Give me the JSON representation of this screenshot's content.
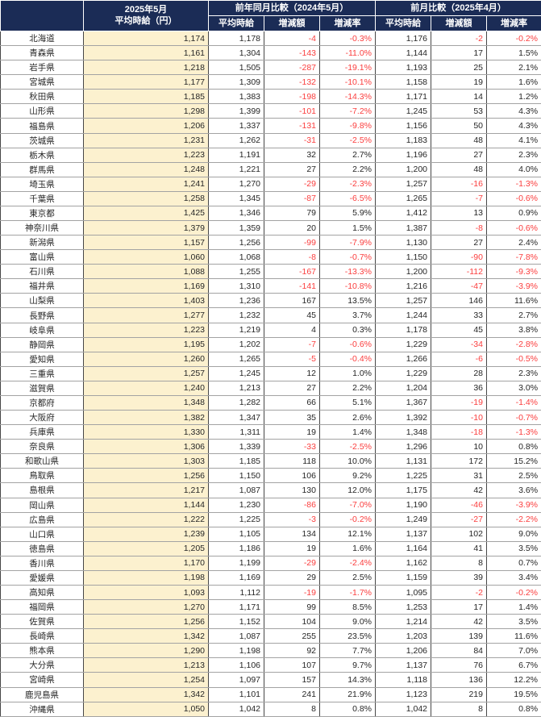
{
  "table": {
    "corner_label": "",
    "current_header_line1": "2025年5月",
    "current_header_line2": "平均時給（円）",
    "group_yoy_header": "前年同月比較（2024年5月）",
    "group_mom_header": "前月比較（2025年4月）",
    "sub_headers": [
      "平均時給",
      "増減額",
      "増減率"
    ],
    "row_fields": [
      "pref",
      "wage",
      "yoy_wage",
      "yoy_diff",
      "yoy_rate",
      "mom_wage",
      "mom_diff",
      "mom_rate"
    ],
    "rows": [
      [
        "北海道",
        "1,174",
        "1,178",
        "-4",
        "-0.3%",
        "1,176",
        "-2",
        "-0.2%"
      ],
      [
        "青森県",
        "1,161",
        "1,304",
        "-143",
        "-11.0%",
        "1,144",
        "17",
        "1.5%"
      ],
      [
        "岩手県",
        "1,218",
        "1,505",
        "-287",
        "-19.1%",
        "1,193",
        "25",
        "2.1%"
      ],
      [
        "宮城県",
        "1,177",
        "1,309",
        "-132",
        "-10.1%",
        "1,158",
        "19",
        "1.6%"
      ],
      [
        "秋田県",
        "1,185",
        "1,383",
        "-198",
        "-14.3%",
        "1,171",
        "14",
        "1.2%"
      ],
      [
        "山形県",
        "1,298",
        "1,399",
        "-101",
        "-7.2%",
        "1,245",
        "53",
        "4.3%"
      ],
      [
        "福島県",
        "1,206",
        "1,337",
        "-131",
        "-9.8%",
        "1,156",
        "50",
        "4.3%"
      ],
      [
        "茨城県",
        "1,231",
        "1,262",
        "-31",
        "-2.5%",
        "1,183",
        "48",
        "4.1%"
      ],
      [
        "栃木県",
        "1,223",
        "1,191",
        "32",
        "2.7%",
        "1,196",
        "27",
        "2.3%"
      ],
      [
        "群馬県",
        "1,248",
        "1,221",
        "27",
        "2.2%",
        "1,200",
        "48",
        "4.0%"
      ],
      [
        "埼玉県",
        "1,241",
        "1,270",
        "-29",
        "-2.3%",
        "1,257",
        "-16",
        "-1.3%"
      ],
      [
        "千葉県",
        "1,258",
        "1,345",
        "-87",
        "-6.5%",
        "1,265",
        "-7",
        "-0.6%"
      ],
      [
        "東京都",
        "1,425",
        "1,346",
        "79",
        "5.9%",
        "1,412",
        "13",
        "0.9%"
      ],
      [
        "神奈川県",
        "1,379",
        "1,359",
        "20",
        "1.5%",
        "1,387",
        "-8",
        "-0.6%"
      ],
      [
        "新潟県",
        "1,157",
        "1,256",
        "-99",
        "-7.9%",
        "1,130",
        "27",
        "2.4%"
      ],
      [
        "富山県",
        "1,060",
        "1,068",
        "-8",
        "-0.7%",
        "1,150",
        "-90",
        "-7.8%"
      ],
      [
        "石川県",
        "1,088",
        "1,255",
        "-167",
        "-13.3%",
        "1,200",
        "-112",
        "-9.3%"
      ],
      [
        "福井県",
        "1,169",
        "1,310",
        "-141",
        "-10.8%",
        "1,216",
        "-47",
        "-3.9%"
      ],
      [
        "山梨県",
        "1,403",
        "1,236",
        "167",
        "13.5%",
        "1,257",
        "146",
        "11.6%"
      ],
      [
        "長野県",
        "1,277",
        "1,232",
        "45",
        "3.7%",
        "1,244",
        "33",
        "2.7%"
      ],
      [
        "岐阜県",
        "1,223",
        "1,219",
        "4",
        "0.3%",
        "1,178",
        "45",
        "3.8%"
      ],
      [
        "静岡県",
        "1,195",
        "1,202",
        "-7",
        "-0.6%",
        "1,229",
        "-34",
        "-2.8%"
      ],
      [
        "愛知県",
        "1,260",
        "1,265",
        "-5",
        "-0.4%",
        "1,266",
        "-6",
        "-0.5%"
      ],
      [
        "三重県",
        "1,257",
        "1,245",
        "12",
        "1.0%",
        "1,229",
        "28",
        "2.3%"
      ],
      [
        "滋賀県",
        "1,240",
        "1,213",
        "27",
        "2.2%",
        "1,204",
        "36",
        "3.0%"
      ],
      [
        "京都府",
        "1,348",
        "1,282",
        "66",
        "5.1%",
        "1,367",
        "-19",
        "-1.4%"
      ],
      [
        "大阪府",
        "1,382",
        "1,347",
        "35",
        "2.6%",
        "1,392",
        "-10",
        "-0.7%"
      ],
      [
        "兵庫県",
        "1,330",
        "1,311",
        "19",
        "1.4%",
        "1,348",
        "-18",
        "-1.3%"
      ],
      [
        "奈良県",
        "1,306",
        "1,339",
        "-33",
        "-2.5%",
        "1,296",
        "10",
        "0.8%"
      ],
      [
        "和歌山県",
        "1,303",
        "1,185",
        "118",
        "10.0%",
        "1,131",
        "172",
        "15.2%"
      ],
      [
        "鳥取県",
        "1,256",
        "1,150",
        "106",
        "9.2%",
        "1,225",
        "31",
        "2.5%"
      ],
      [
        "島根県",
        "1,217",
        "1,087",
        "130",
        "12.0%",
        "1,175",
        "42",
        "3.6%"
      ],
      [
        "岡山県",
        "1,144",
        "1,230",
        "-86",
        "-7.0%",
        "1,190",
        "-46",
        "-3.9%"
      ],
      [
        "広島県",
        "1,222",
        "1,225",
        "-3",
        "-0.2%",
        "1,249",
        "-27",
        "-2.2%"
      ],
      [
        "山口県",
        "1,239",
        "1,105",
        "134",
        "12.1%",
        "1,137",
        "102",
        "9.0%"
      ],
      [
        "徳島県",
        "1,205",
        "1,186",
        "19",
        "1.6%",
        "1,164",
        "41",
        "3.5%"
      ],
      [
        "香川県",
        "1,170",
        "1,199",
        "-29",
        "-2.4%",
        "1,162",
        "8",
        "0.7%"
      ],
      [
        "愛媛県",
        "1,198",
        "1,169",
        "29",
        "2.5%",
        "1,159",
        "39",
        "3.4%"
      ],
      [
        "高知県",
        "1,093",
        "1,112",
        "-19",
        "-1.7%",
        "1,095",
        "-2",
        "-0.2%"
      ],
      [
        "福岡県",
        "1,270",
        "1,171",
        "99",
        "8.5%",
        "1,253",
        "17",
        "1.4%"
      ],
      [
        "佐賀県",
        "1,256",
        "1,152",
        "104",
        "9.0%",
        "1,214",
        "42",
        "3.5%"
      ],
      [
        "長崎県",
        "1,342",
        "1,087",
        "255",
        "23.5%",
        "1,203",
        "139",
        "11.6%"
      ],
      [
        "熊本県",
        "1,290",
        "1,198",
        "92",
        "7.7%",
        "1,206",
        "84",
        "7.0%"
      ],
      [
        "大分県",
        "1,213",
        "1,106",
        "107",
        "9.7%",
        "1,137",
        "76",
        "6.7%"
      ],
      [
        "宮崎県",
        "1,254",
        "1,097",
        "157",
        "14.3%",
        "1,118",
        "136",
        "12.2%"
      ],
      [
        "鹿児島県",
        "1,342",
        "1,101",
        "241",
        "21.9%",
        "1,123",
        "219",
        "19.5%"
      ],
      [
        "沖縄県",
        "1,050",
        "1,042",
        "8",
        "0.8%",
        "1,042",
        "8",
        "0.8%"
      ]
    ]
  },
  "colors": {
    "header_bg": "#1B2C56",
    "header_text": "#FFFFFF",
    "highlight_bg": "#FCF1CF",
    "negative_text": "#FB3E3E",
    "body_text": "#262626"
  }
}
